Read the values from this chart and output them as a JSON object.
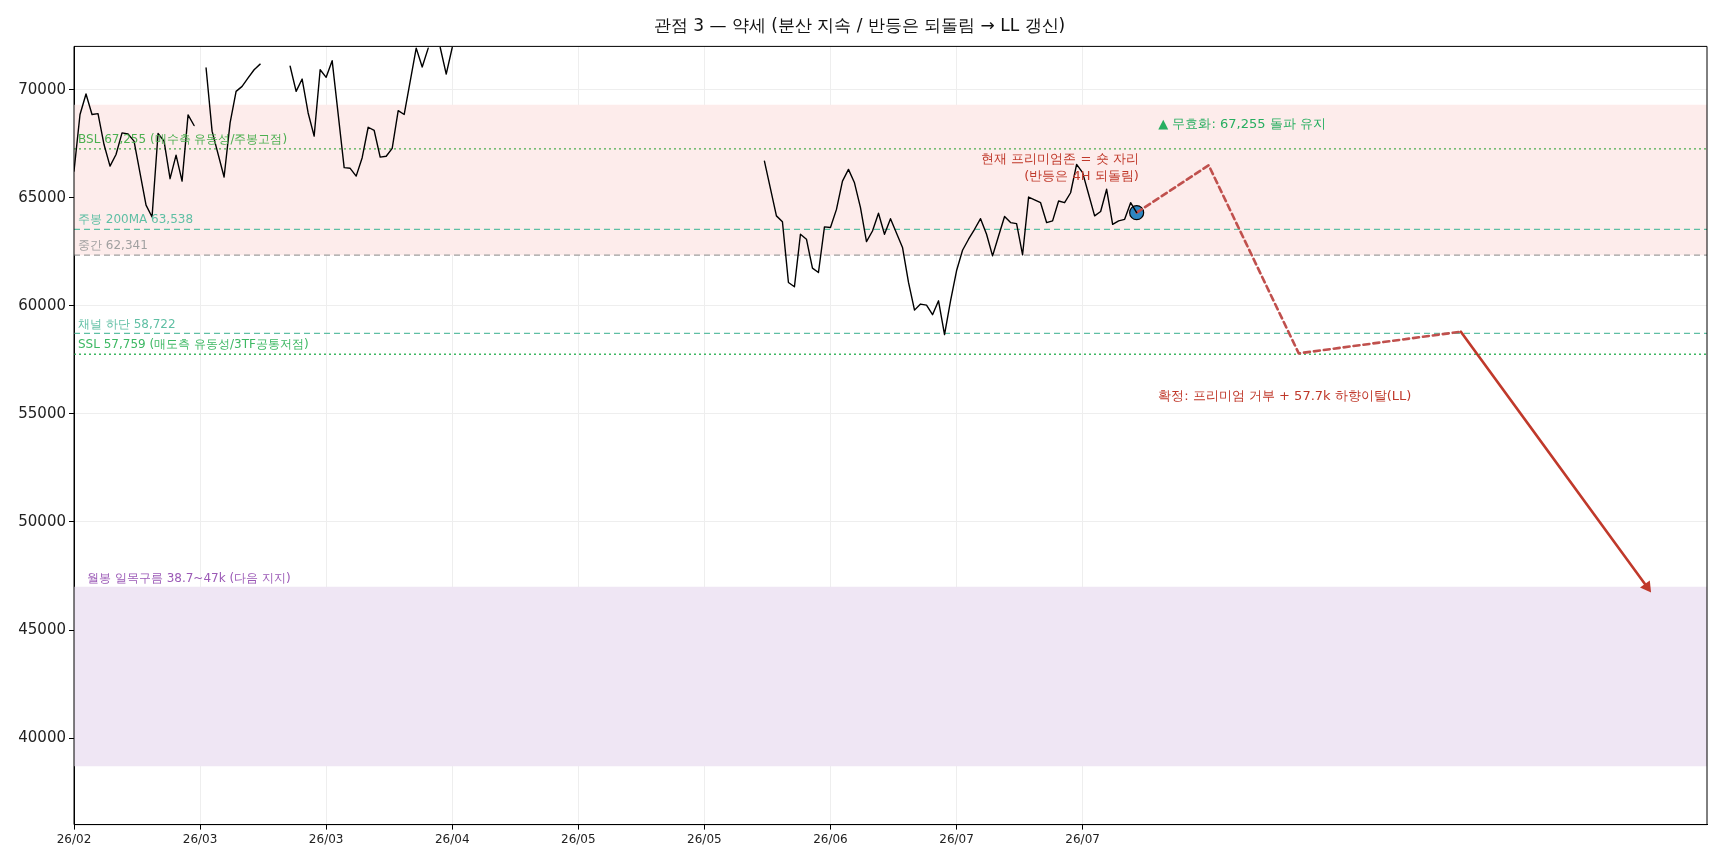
{
  "chart_data": {
    "type": "line",
    "title": "관점 3 — 약세 (분산 지속 / 반등은 되돌림 → LL 갱신)",
    "xlim": [
      "--02-09",
      "--11-08"
    ],
    "xticks": [
      {
        "value": "--02-09",
        "label": "26/02"
      },
      {
        "value": "--03-02",
        "label": "26/03"
      },
      {
        "value": "--03-23",
        "label": "26/03"
      },
      {
        "value": "--04-13",
        "label": "26/04"
      },
      {
        "value": "--05-04",
        "label": "26/05"
      },
      {
        "value": "--05-25",
        "label": "26/05"
      },
      {
        "value": "--06-15",
        "label": "26/06"
      },
      {
        "value": "--07-06",
        "label": "26/07"
      },
      {
        "value": "--07-27",
        "label": "26/07"
      }
    ],
    "ylim": [
      36000,
      72000
    ],
    "yticks": [
      40000,
      45000,
      50000,
      55000,
      60000,
      65000,
      70000
    ],
    "grid": true,
    "marker": "none",
    "series": [
      {
        "type": "line",
        "color": "#000000",
        "x": [
          "--02-09",
          "--02-10",
          "--02-11",
          "--02-12",
          "--02-13",
          "--02-14",
          "--02-15",
          "--02-16",
          "--02-17",
          "--02-18",
          "--02-19",
          "--02-21",
          "--02-22",
          "--02-23",
          "--02-24",
          "--02-25",
          "--02-26",
          "--02-27",
          "--02-28",
          "--03-01",
          "--03-02",
          "--03-03",
          "--03-04",
          "--03-06",
          "--03-07",
          "--03-08",
          "--03-09",
          "--03-10",
          "--03-11",
          "--03-12",
          "--03-14",
          "--03-17",
          "--03-18",
          "--03-19",
          "--03-20",
          "--03-21",
          "--03-22",
          "--03-23",
          "--03-24",
          "--03-26",
          "--03-27",
          "--03-28",
          "--03-29",
          "--03-30",
          "--03-31",
          "--04-01",
          "--04-02",
          "--04-03",
          "--04-04",
          "--04-05",
          "--04-07",
          "--04-08",
          "--04-09",
          "--04-10",
          "--04-11",
          "--04-12",
          "--04-13",
          "--04-14",
          "--06-04",
          "--06-06",
          "--06-07",
          "--06-08",
          "--06-09",
          "--06-10",
          "--06-11",
          "--06-12",
          "--06-13",
          "--06-14",
          "--06-15",
          "--06-16",
          "--06-17",
          "--06-18",
          "--06-19",
          "--06-20",
          "--06-21",
          "--06-22",
          "--06-23",
          "--06-24",
          "--06-25",
          "--06-27",
          "--06-28",
          "--06-29",
          "--06-30",
          "--07-01",
          "--07-02",
          "--07-03",
          "--07-04",
          "--07-05",
          "--07-06",
          "--07-07",
          "--07-08",
          "--07-09",
          "--07-10",
          "--07-11",
          "--07-12",
          "--07-13",
          "--07-14",
          "--07-15",
          "--07-16",
          "--07-17",
          "--07-18",
          "--07-20",
          "--07-21",
          "--07-22",
          "--07-23",
          "--07-24",
          "--07-25",
          "--07-26",
          "--07-27",
          "--07-28",
          "--07-29",
          "--07-30",
          "--07-31",
          "--08-01",
          "--08-02",
          "--08-03",
          "--08-04",
          "--08-05"
        ],
        "values": [
          66230,
          68850,
          69800,
          68850,
          68890,
          67460,
          66460,
          67000,
          68000,
          67950,
          67620,
          64660,
          64110,
          67970,
          67620,
          65880,
          66970,
          65770,
          68830,
          68340,
          null,
          71000,
          68080,
          65960,
          68460,
          69920,
          70150,
          70540,
          70920,
          71180,
          null,
          71080,
          69920,
          70490,
          68920,
          67850,
          70920,
          70570,
          71340,
          66390,
          66360,
          66000,
          66850,
          68260,
          68110,
          66880,
          66920,
          67280,
          69030,
          68850,
          71920,
          71050,
          71920,
          null,
          71950,
          70720,
          71950,
          null,
          66690,
          64160,
          63890,
          61080,
          60880,
          63310,
          63080,
          61740,
          61540,
          63650,
          63620,
          64460,
          65770,
          66310,
          65690,
          64540,
          62970,
          63460,
          64280,
          63310,
          64030,
          62700,
          61080,
          59800,
          60080,
          60030,
          59590,
          60230,
          58670,
          60230,
          61620,
          62570,
          63080,
          63540,
          64030,
          63310,
          62310,
          63230,
          64130,
          63850,
          63800,
          62360,
          65030,
          64770,
          63850,
          63930,
          64850,
          64770,
          65230,
          66540,
          66160,
          65160,
          64160,
          64360,
          65390,
          63770,
          63930,
          64000,
          64770,
          64310
        ]
      },
      {
        "type": "line",
        "color": "#c0504d",
        "line_style": "dashed",
        "x": [
          "--08-05",
          "--08-17",
          "--09-01",
          "--09-28"
        ],
        "values": [
          64310,
          66500,
          57800,
          58800
        ]
      },
      {
        "type": "line",
        "color": "#c0392b",
        "line_style": "solid",
        "marker": "triangle",
        "x": [
          "--09-28",
          "--10-29"
        ],
        "values": [
          58800,
          47000
        ]
      },
      {
        "type": "scatter",
        "color": "#2e86c1",
        "marker": "circle",
        "x": [
          "--08-05"
        ],
        "values": [
          64310
        ]
      }
    ],
    "bands": [
      {
        "axis": "y",
        "from": 62341,
        "to": 69300,
        "color": "#fdeceb"
      },
      {
        "axis": "y",
        "from": 38700,
        "to": 47000,
        "color": "#efe6f4",
        "label": "월봉 일목구름 38.7~47k (다음 지지)"
      }
    ],
    "ref_lines": [
      {
        "axis": "y",
        "value": 67255,
        "label": "BSL 67,255 (매수측 유동성/주봉고점)",
        "color": "#4caf50",
        "line_style": "dotted"
      },
      {
        "axis": "y",
        "value": 63538,
        "label": "주봉 200MA 63,538",
        "color": "#5fbfa4",
        "line_style": "dashed"
      },
      {
        "axis": "y",
        "value": 62341,
        "label": "중간 62,341",
        "color": "#a0a0a0",
        "line_style": "dashed"
      },
      {
        "axis": "y",
        "value": 58722,
        "label": "채널 하단 58,722",
        "color": "#5fbfa4",
        "line_style": "dashed"
      },
      {
        "axis": "y",
        "value": 57759,
        "label": "SSL 57,759 (매도측 유동성/3TF공통저점)",
        "color": "#3cb863",
        "line_style": "dotted"
      }
    ],
    "annotations": [
      "▲ 무효화: 67,255 돌파 유지",
      "현재 프리미엄존 = 숏 자리\n(반등은 4H 되돌림)",
      "확정: 프리미엄 거부 + 57.7k 하향이탈(LL)"
    ]
  }
}
